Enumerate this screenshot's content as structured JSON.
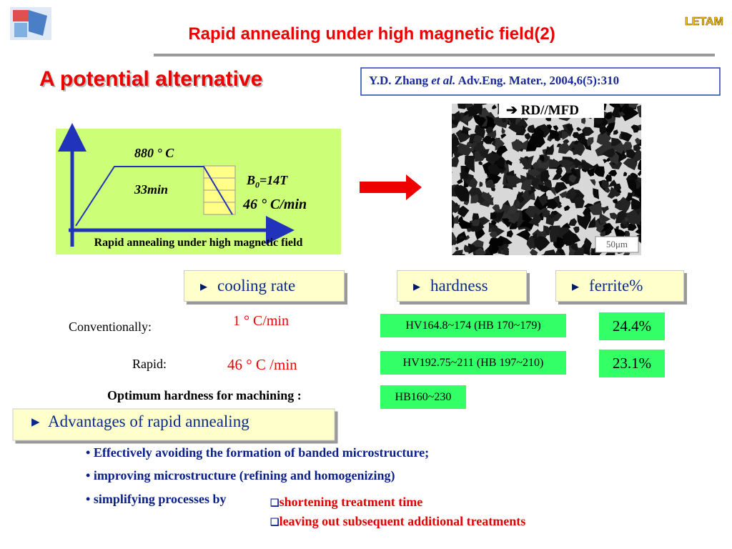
{
  "header": {
    "title": "Rapid annealing under high magnetic field(2)",
    "brand": "LETAM"
  },
  "subtitle": "A potential alternative",
  "reference": {
    "authors": "Y.D. Zhang",
    "etal": "et al.",
    "source": "Adv.Eng. Mater., 2004,6(5):310"
  },
  "diagram": {
    "temperature": "880 ° C",
    "time": "33min",
    "field": {
      "symbol": "B",
      "subscript": "0",
      "value": "=14T"
    },
    "rate": "46 ° C/min",
    "caption": "Rapid annealing under high magnetic field"
  },
  "micrograph": {
    "direction": "RD//MFD",
    "scale": "50μm"
  },
  "table": {
    "headers": [
      "cooling rate",
      "hardness",
      "ferrite%"
    ],
    "rows": [
      {
        "label": "Conventionally:",
        "cooling": "1 ° C/min",
        "hardness": "HV164.8~174 (HB 170~179)",
        "ferrite": "24.4%"
      },
      {
        "label": "Rapid:",
        "cooling": "46 ° C /min",
        "hardness": "HV192.75~211 (HB 197~210)",
        "ferrite": "23.1%"
      }
    ],
    "optimum": {
      "label": "Optimum hardness for machining :",
      "value": "HB160~230"
    }
  },
  "advantages": {
    "heading": "Advantages of rapid annealing",
    "bullets": [
      "Effectively avoiding the formation of banded microstructure;",
      "improving microstructure (refining and homogenizing)",
      "simplifying processes by"
    ],
    "sub_items": [
      "shortening treatment time",
      "leaving out subsequent additional treatments"
    ]
  }
}
